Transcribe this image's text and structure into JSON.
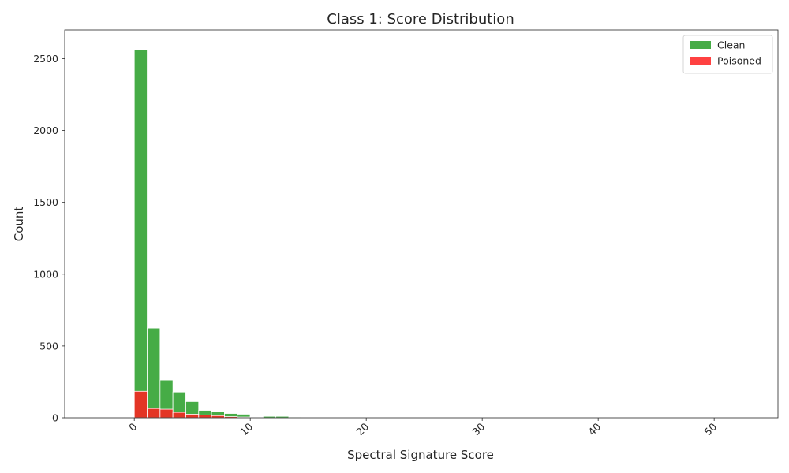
{
  "chart_data": {
    "type": "bar",
    "title": "Class 1: Score Distribution",
    "xlabel": "Spectral Signature Score",
    "ylabel": "Count",
    "xlim": [
      -6,
      55.5
    ],
    "ylim": [
      0,
      2700
    ],
    "bin_width": 1.11,
    "x_ticks": [
      0,
      10,
      20,
      30,
      40,
      50
    ],
    "y_ticks": [
      0,
      500,
      1000,
      1500,
      2000,
      2500
    ],
    "grid": false,
    "legend_position": "top-right",
    "series": [
      {
        "name": "Clean",
        "color": "#2ca02c",
        "bins": [
          {
            "x": 0.0,
            "value": 2565
          },
          {
            "x": 1.11,
            "value": 625
          },
          {
            "x": 2.22,
            "value": 263
          },
          {
            "x": 3.33,
            "value": 180
          },
          {
            "x": 4.44,
            "value": 113
          },
          {
            "x": 5.55,
            "value": 52
          },
          {
            "x": 6.66,
            "value": 45
          },
          {
            "x": 7.77,
            "value": 30
          },
          {
            "x": 8.88,
            "value": 25
          },
          {
            "x": 9.99,
            "value": 5
          },
          {
            "x": 11.1,
            "value": 10
          },
          {
            "x": 12.21,
            "value": 10
          },
          {
            "x": 13.32,
            "value": 5
          },
          {
            "x": 14.43,
            "value": 3
          },
          {
            "x": 15.54,
            "value": 2
          },
          {
            "x": 16.65,
            "value": 1
          }
        ]
      },
      {
        "name": "Poisoned",
        "color": "#ff2020",
        "bins": [
          {
            "x": 0.0,
            "value": 185
          },
          {
            "x": 1.11,
            "value": 65
          },
          {
            "x": 2.22,
            "value": 60
          },
          {
            "x": 3.33,
            "value": 38
          },
          {
            "x": 4.44,
            "value": 25
          },
          {
            "x": 5.55,
            "value": 20
          },
          {
            "x": 6.66,
            "value": 15
          },
          {
            "x": 7.77,
            "value": 8
          },
          {
            "x": 8.88,
            "value": 5
          },
          {
            "x": 9.99,
            "value": 2
          }
        ]
      }
    ]
  }
}
